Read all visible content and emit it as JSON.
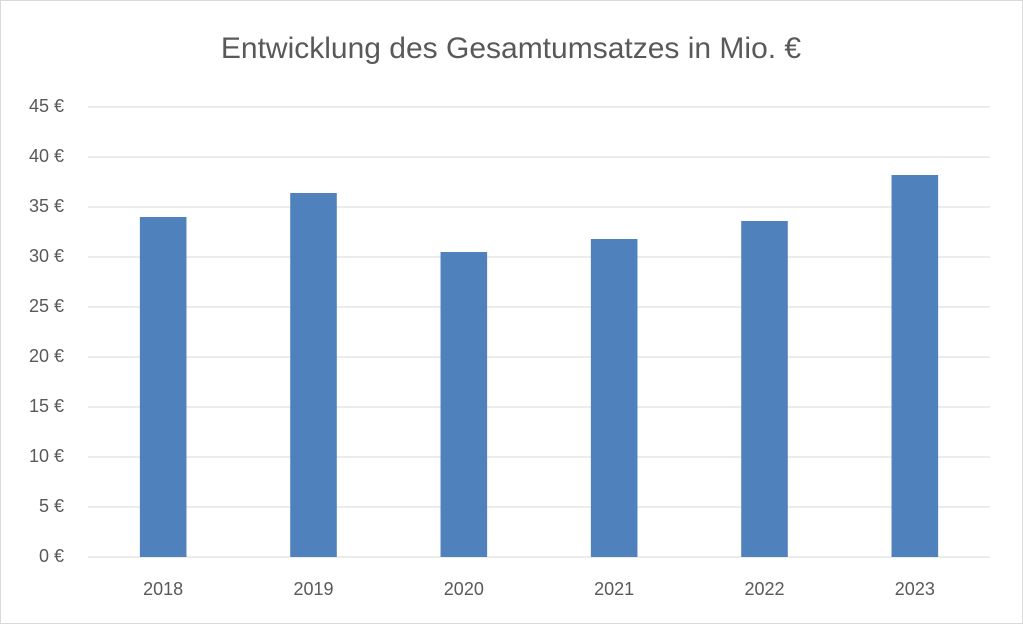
{
  "chart_data": {
    "type": "bar",
    "title": "Entwicklung des Gesamtumsatzes in Mio. €",
    "categories": [
      "2018",
      "2019",
      "2020",
      "2021",
      "2022",
      "2023"
    ],
    "values": [
      34.0,
      36.4,
      30.5,
      31.8,
      33.6,
      38.2
    ],
    "color": "#4f81bd",
    "ylim": [
      0,
      45
    ],
    "yticks": [
      {
        "value": 0,
        "label": "0 €"
      },
      {
        "value": 5,
        "label": "5 €"
      },
      {
        "value": 10,
        "label": "10 €"
      },
      {
        "value": 15,
        "label": "15 €"
      },
      {
        "value": 20,
        "label": "20 €"
      },
      {
        "value": 25,
        "label": "25 €"
      },
      {
        "value": 30,
        "label": "30 €"
      },
      {
        "value": 35,
        "label": "35 €"
      },
      {
        "value": 40,
        "label": "40 €"
      },
      {
        "value": 45,
        "label": "45 €"
      }
    ],
    "grid": true
  }
}
